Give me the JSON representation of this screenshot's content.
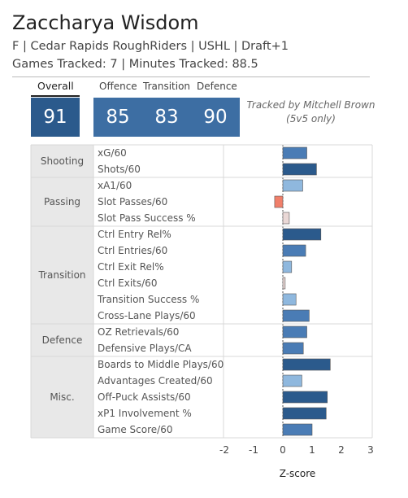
{
  "header": {
    "player_name": "Zaccharya Wisdom",
    "line1": "F | Cedar Rapids RoughRiders | USHL | Draft+1",
    "line2": "Games Tracked: 7 | Minutes Tracked: 88.5"
  },
  "ratings": {
    "overall_label": "Overall",
    "overall_value": "91",
    "offence_label": "Offence",
    "offence_value": "85",
    "transition_label": "Transition",
    "transition_value": "83",
    "defence_label": "Defence",
    "defence_value": "90"
  },
  "tracked_by": {
    "line1": "Tracked by Mitchell Brown",
    "line2": "(5v5 only)"
  },
  "colors": {
    "tile": "#2b5a8c",
    "tile_light": "#3d6ea3",
    "bar_dark": "#2b5a8c",
    "bar_mid": "#4a7cb5",
    "bar_light": "#8fb8de",
    "bar_neg": "#f07f6a",
    "bar_pale": "#ead8d6",
    "category_bg": "#e8e8e8",
    "grid": "#d8d8d8"
  },
  "chart_data": {
    "type": "bar",
    "orientation": "horizontal",
    "xlabel": "Z-score",
    "xlim": [
      -3,
      3
    ],
    "x_ticks": [
      "-2",
      "-1",
      "0",
      "1",
      "2",
      "3"
    ],
    "categories": [
      {
        "name": "Shooting",
        "metrics": [
          {
            "label": "xG/60",
            "value": 0.82,
            "shade": "bar_mid"
          },
          {
            "label": "Shots/60",
            "value": 1.15,
            "shade": "bar_dark"
          }
        ]
      },
      {
        "name": "Passing",
        "metrics": [
          {
            "label": "xA1/60",
            "value": 0.68,
            "shade": "bar_light"
          },
          {
            "label": "Slot Passes/60",
            "value": -0.28,
            "shade": "bar_neg"
          },
          {
            "label": "Slot Pass Success %",
            "value": 0.22,
            "shade": "bar_pale"
          }
        ]
      },
      {
        "name": "Transition",
        "metrics": [
          {
            "label": "Ctrl Entry Rel%",
            "value": 1.3,
            "shade": "bar_dark"
          },
          {
            "label": "Ctrl Entries/60",
            "value": 0.78,
            "shade": "bar_mid"
          },
          {
            "label": "Ctrl Exit Rel%",
            "value": 0.3,
            "shade": "bar_light"
          },
          {
            "label": "Ctrl Exits/60",
            "value": 0.08,
            "shade": "bar_pale"
          },
          {
            "label": "Transition Success %",
            "value": 0.45,
            "shade": "bar_light"
          },
          {
            "label": "Cross-Lane Plays/60",
            "value": 0.9,
            "shade": "bar_mid"
          }
        ]
      },
      {
        "name": "Defence",
        "metrics": [
          {
            "label": "OZ Retrievals/60",
            "value": 0.82,
            "shade": "bar_mid"
          },
          {
            "label": "Defensive Plays/CA",
            "value": 0.7,
            "shade": "bar_mid"
          }
        ]
      },
      {
        "name": "Misc.",
        "metrics": [
          {
            "label": "Boards to Middle Plays/60",
            "value": 1.62,
            "shade": "bar_dark"
          },
          {
            "label": "Advantages Created/60",
            "value": 0.65,
            "shade": "bar_light"
          },
          {
            "label": "Off-Puck Assists/60",
            "value": 1.52,
            "shade": "bar_dark"
          },
          {
            "label": "xP1 Involvement %",
            "value": 1.48,
            "shade": "bar_dark"
          },
          {
            "label": "Game Score/60",
            "value": 1.0,
            "shade": "bar_mid"
          }
        ]
      }
    ]
  }
}
